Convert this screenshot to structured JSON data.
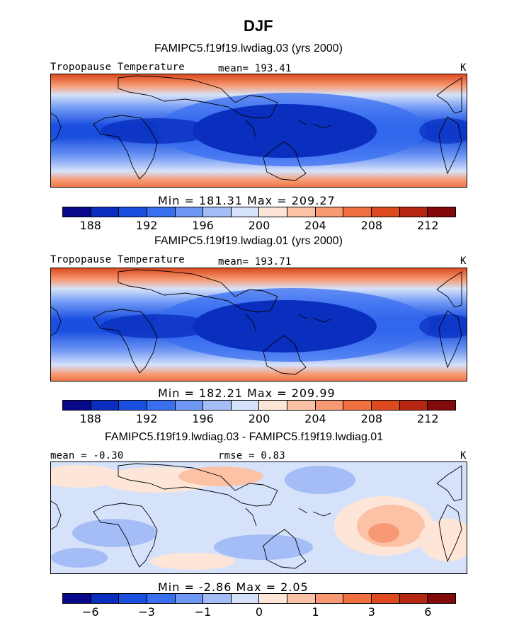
{
  "title": "DJF",
  "panels": [
    {
      "subtitle": "FAMIPC5.f19f19.lwdiag.03 (yrs 2000)",
      "left_label": "Tropopause Temperature",
      "mid_label": "mean= 193.41",
      "units": "K",
      "stats": "Min = 181.31 Max = 209.27"
    },
    {
      "subtitle": "FAMIPC5.f19f19.lwdiag.01 (yrs 2000)",
      "left_label": "Tropopause Temperature",
      "mid_label": "mean= 193.71",
      "units": "K",
      "stats": "Min = 182.21 Max = 209.99"
    },
    {
      "subtitle": "FAMIPC5.f19f19.lwdiag.03 - FAMIPC5.f19f19.lwdiag.01",
      "left_label": "mean =   -0.30",
      "mid_label": "rmse =    0.83",
      "units": "K",
      "stats": "Min =  -2.86 Max =   2.05"
    }
  ],
  "colorbar": {
    "colors": [
      "#08088a",
      "#0a2fbf",
      "#1a4fe0",
      "#3a6ff0",
      "#6f97f4",
      "#a4bdf6",
      "#d6e2fa",
      "#fde6d7",
      "#fbc2a6",
      "#f79a73",
      "#f0703f",
      "#dd4a1f",
      "#b52712",
      "#820a0a"
    ],
    "temp_ticks": [
      "188",
      "192",
      "196",
      "200",
      "204",
      "208",
      "212"
    ],
    "diff_ticks": [
      "−6",
      "−3",
      "−1",
      "0",
      "1",
      "3",
      "6"
    ]
  },
  "chart_data": [
    {
      "type": "heatmap",
      "title": "FAMIPC5.f19f19.lwdiag.03 (yrs 2000)",
      "variable": "Tropopause Temperature",
      "units": "K",
      "mean": 193.41,
      "min": 181.31,
      "max": 209.27,
      "levels": [
        186,
        188,
        190,
        192,
        194,
        196,
        198,
        200,
        202,
        204,
        206,
        208,
        210,
        212
      ],
      "tick_labels": [
        188,
        192,
        196,
        200,
        204,
        208,
        212
      ]
    },
    {
      "type": "heatmap",
      "title": "FAMIPC5.f19f19.lwdiag.01 (yrs 2000)",
      "variable": "Tropopause Temperature",
      "units": "K",
      "mean": 193.71,
      "min": 182.21,
      "max": 209.99,
      "levels": [
        186,
        188,
        190,
        192,
        194,
        196,
        198,
        200,
        202,
        204,
        206,
        208,
        210,
        212
      ],
      "tick_labels": [
        188,
        192,
        196,
        200,
        204,
        208,
        212
      ]
    },
    {
      "type": "heatmap",
      "title": "FAMIPC5.f19f19.lwdiag.03 - FAMIPC5.f19f19.lwdiag.01",
      "units": "K",
      "mean": -0.3,
      "rmse": 0.83,
      "min": -2.86,
      "max": 2.05,
      "tick_labels": [
        -6,
        -3,
        -1,
        0,
        1,
        3,
        6
      ]
    }
  ]
}
